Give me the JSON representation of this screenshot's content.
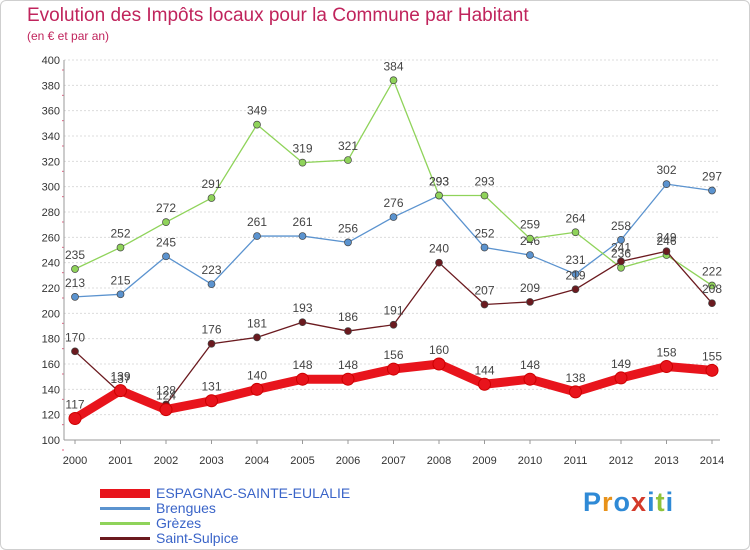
{
  "header": {
    "title": "Evolution des Impôts locaux pour la Commune par Habitant",
    "subtitle": "(en € et par an)"
  },
  "logo": {
    "text": "Proxiti"
  },
  "chart_data": {
    "type": "line",
    "title": "Evolution des Impôts locaux pour la Commune par Habitant",
    "subtitle": "(en € et par an)",
    "xlabel": "",
    "ylabel": "",
    "x": [
      "2000",
      "2001",
      "2002",
      "2003",
      "2004",
      "2005",
      "2006",
      "2007",
      "2008",
      "2009",
      "2010",
      "2011",
      "2012",
      "2013",
      "2014"
    ],
    "ylim": [
      100,
      400
    ],
    "y_ticks": [
      100,
      120,
      140,
      160,
      180,
      200,
      220,
      240,
      260,
      280,
      300,
      320,
      340,
      360,
      380,
      400
    ],
    "grid": true,
    "legend_position": "bottom-left",
    "series": [
      {
        "name": "ESPAGNAC-SAINTE-EULALIE",
        "color": "#e8141c",
        "values": [
          117,
          139,
          124,
          131,
          140,
          148,
          148,
          156,
          160,
          144,
          148,
          138,
          149,
          158,
          155
        ]
      },
      {
        "name": "Brengues",
        "color": "#5b93cf",
        "values": [
          213,
          215,
          245,
          223,
          261,
          261,
          256,
          276,
          293,
          252,
          246,
          231,
          258,
          302,
          297
        ]
      },
      {
        "name": "Grèzes",
        "color": "#8fd35a",
        "values": [
          235,
          252,
          272,
          291,
          349,
          319,
          321,
          384,
          293,
          293,
          259,
          264,
          236,
          246,
          222
        ]
      },
      {
        "name": "Saint-Sulpice",
        "color": "#6b1a1f",
        "values": [
          170,
          137,
          128,
          176,
          181,
          193,
          186,
          191,
          240,
          207,
          209,
          219,
          241,
          249,
          208
        ]
      }
    ]
  }
}
